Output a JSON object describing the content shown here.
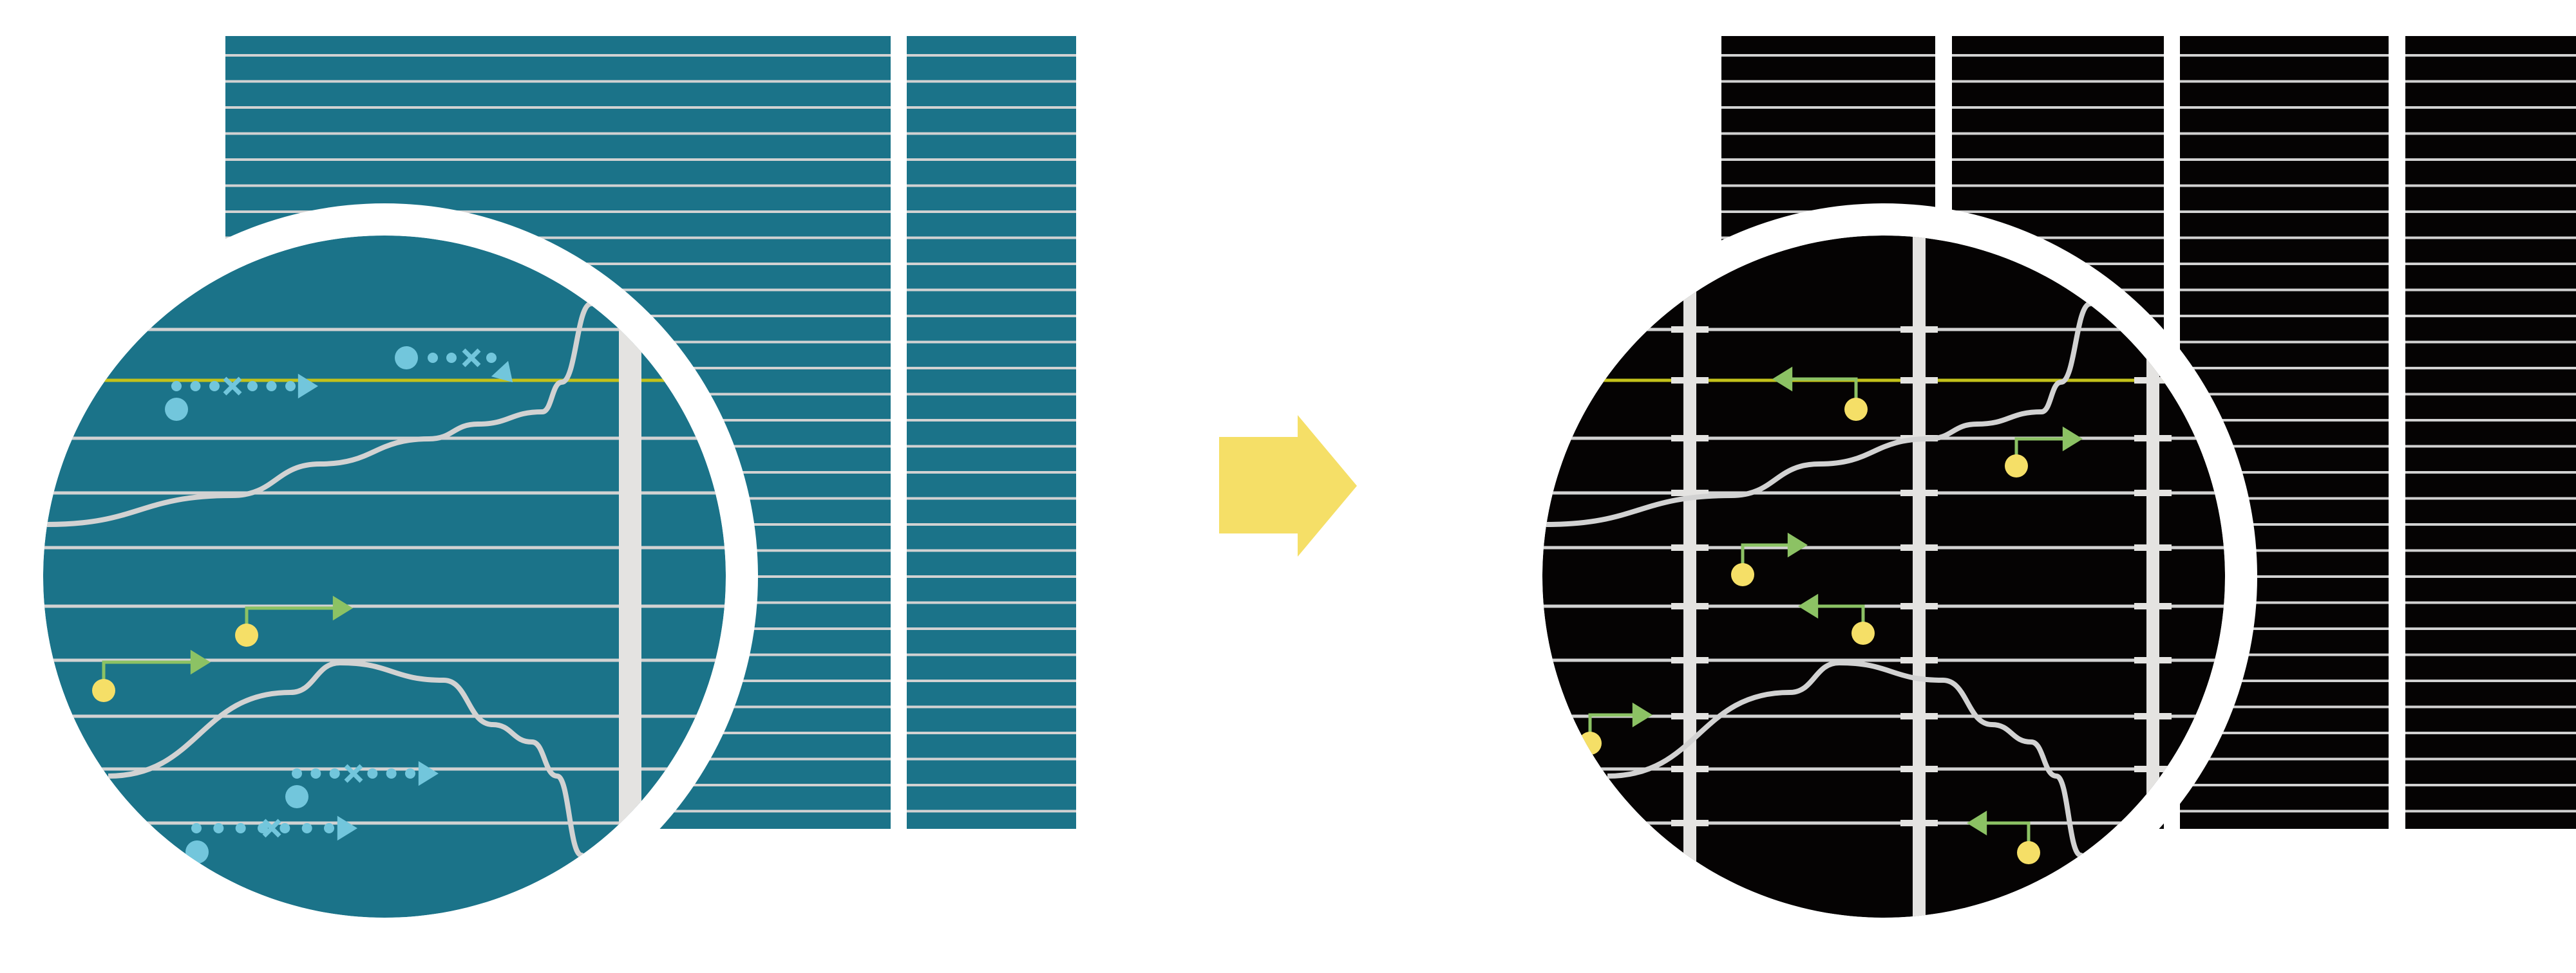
{
  "colors": {
    "background": "#ffffff",
    "left_panel": "#1b7389",
    "right_panel": "#050303",
    "grid_line": "#d2d2d2",
    "busbar": "#e4e3e1",
    "highlight_line": "#c3c21a",
    "carrier_blue": "#72c6dc",
    "carrier_yellow": "#f5df67",
    "path_green": "#8cc264",
    "transition_arrow": "#f5df67",
    "ring": "#ffffff"
  },
  "icons": {
    "transition": "arrow-right-icon",
    "left_magnifier": "magnifier-circle-icon",
    "right_magnifier": "magnifier-circle-icon"
  }
}
